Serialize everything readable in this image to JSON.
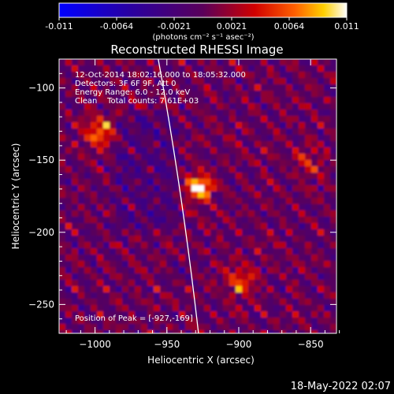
{
  "colorbar": {
    "ticks": [
      "-0.011",
      "-0.0064",
      "-0.0021",
      "0.0021",
      "0.0064",
      "0.011"
    ],
    "unit_label": "(photons cm⁻² s⁻¹ asec⁻²)",
    "colors": [
      "#0000ff",
      "#5a005a",
      "#ff0000",
      "#ffffff"
    ]
  },
  "chart_data": {
    "type": "heatmap",
    "title": "Reconstructed RHESSI Image",
    "xlabel": "Heliocentric X (arcsec)",
    "ylabel": "Heliocentric Y (arcsec)",
    "xlim": [
      -1025,
      -832
    ],
    "ylim": [
      -270,
      -80
    ],
    "x_ticks": [
      -1000,
      -950,
      -900,
      -850
    ],
    "x_tick_labels": [
      "−1000",
      "−950",
      "−900",
      "−850"
    ],
    "y_ticks": [
      -100,
      -150,
      -200,
      -250
    ],
    "y_tick_labels": [
      "−100",
      "−150",
      "−200",
      "−250"
    ],
    "value_range": [
      -0.011,
      0.011
    ],
    "peak": {
      "x": -927,
      "y": -169
    },
    "sources": [
      {
        "x": -927,
        "y": -169,
        "peak_value": 0.011
      },
      {
        "x": -997,
        "y": -130,
        "peak_value": 0.007
      },
      {
        "x": -900,
        "y": -234,
        "peak_value": 0.0055
      },
      {
        "x": -852,
        "y": -152,
        "peak_value": 0.004
      }
    ],
    "limb_curve": [
      [
        -956,
        -80
      ],
      [
        -945,
        -140
      ],
      [
        -936,
        -200
      ],
      [
        -928,
        -270
      ]
    ],
    "annotations": {
      "time_range": "12-Oct-2014 18:02:16.000 to 18:05:32.000",
      "detectors": "Detectors: 3F 6F 9F, Att 0",
      "energy": "Energy Range: 6.0 - 12.0 keV",
      "method": "Clean    Total counts: 7.61E+03",
      "peak_label": "Position of Peak = [-927,-169]"
    }
  },
  "footer": {
    "date_stamp": "18-May-2022 02:07"
  }
}
